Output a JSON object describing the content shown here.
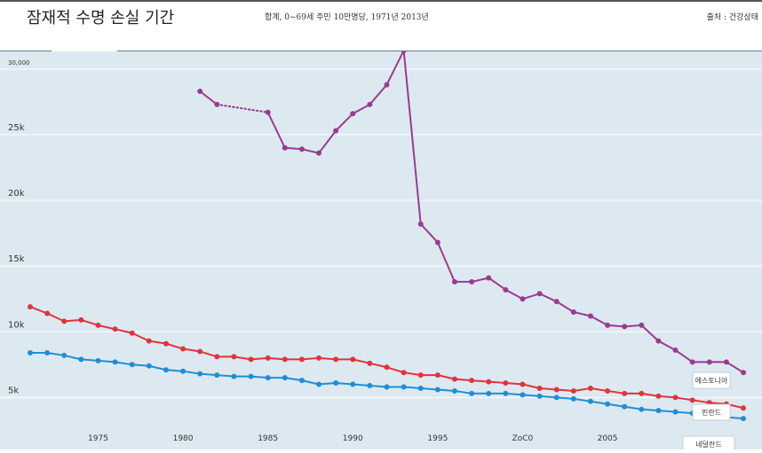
{
  "header": {
    "title": "잠재적 수명 손실 기간",
    "subtitle": "합계, 0~69세 주민 10만명당, 1971년 2013년",
    "source": "출처 : 건강상태"
  },
  "colors": {
    "background": "#dde9f1",
    "grid": "#ffffff",
    "estonia": "#9b3a8f",
    "finland": "#e0343c",
    "netherlands": "#1f8ed6"
  },
  "chart_data": {
    "type": "line",
    "title": "잠재적 수명 손실 기간",
    "xlabel": "",
    "ylabel": "",
    "xlim": [
      1971,
      2013
    ],
    "ylim": [
      3000,
      31000
    ],
    "x_ticks": [
      {
        "value": 1975,
        "label": "1975"
      },
      {
        "value": 1980,
        "label": "1980"
      },
      {
        "value": 1985,
        "label": "1985"
      },
      {
        "value": 1990,
        "label": "1990"
      },
      {
        "value": 1995,
        "label": "1995"
      },
      {
        "value": 2000,
        "label": "ZoC0"
      },
      {
        "value": 2005,
        "label": "2005"
      }
    ],
    "y_ticks": [
      {
        "value": 5000,
        "label": "5k"
      },
      {
        "value": 10000,
        "label": "10k"
      },
      {
        "value": 15000,
        "label": "15k"
      },
      {
        "value": 20000,
        "label": "20k"
      },
      {
        "value": 25000,
        "label": "25k"
      },
      {
        "value": 30000,
        "label": "30,000"
      }
    ],
    "grid": true,
    "series": [
      {
        "name": "에스토니아",
        "color": "#9b3a8f",
        "x": [
          1981,
          1982,
          1985,
          1986,
          1987,
          1988,
          1989,
          1990,
          1991,
          1992,
          1993,
          1994,
          1995,
          1996,
          1997,
          1998,
          1999,
          2000,
          2001,
          2002,
          2003,
          2004,
          2005,
          2006,
          2007,
          2008,
          2009,
          2010,
          2011,
          2012,
          2013
        ],
        "values": [
          28300,
          27300,
          26700,
          24000,
          23900,
          23600,
          25300,
          26600,
          27300,
          28800,
          31400,
          18200,
          16800,
          13800,
          13800,
          14100,
          13200,
          12500,
          12900,
          12300,
          11500,
          11200,
          10500,
          10400,
          10500,
          9300,
          8600,
          7700,
          7700,
          7700,
          6900
        ],
        "dotted_segments": [
          [
            1982,
            1985
          ]
        ]
      },
      {
        "name": "핀란드",
        "color": "#e0343c",
        "x": [
          1971,
          1972,
          1973,
          1974,
          1975,
          1976,
          1977,
          1978,
          1979,
          1980,
          1981,
          1982,
          1983,
          1984,
          1985,
          1986,
          1987,
          1988,
          1989,
          1990,
          1991,
          1992,
          1993,
          1994,
          1995,
          1996,
          1997,
          1998,
          1999,
          2000,
          2001,
          2002,
          2003,
          2004,
          2005,
          2006,
          2007,
          2008,
          2009,
          2010,
          2011,
          2012,
          2013
        ],
        "values": [
          11900,
          11400,
          10800,
          10900,
          10500,
          10200,
          9900,
          9300,
          9100,
          8700,
          8500,
          8100,
          8100,
          7900,
          8000,
          7900,
          7900,
          8000,
          7900,
          7900,
          7600,
          7300,
          6900,
          6700,
          6700,
          6400,
          6300,
          6200,
          6100,
          6000,
          5700,
          5600,
          5500,
          5700,
          5500,
          5300,
          5300,
          5100,
          5000,
          4800,
          4600,
          4500,
          4200
        ]
      },
      {
        "name": "네덜란드",
        "color": "#1f8ed6",
        "x": [
          1971,
          1972,
          1973,
          1974,
          1975,
          1976,
          1977,
          1978,
          1979,
          1980,
          1981,
          1982,
          1983,
          1984,
          1985,
          1986,
          1987,
          1988,
          1989,
          1990,
          1991,
          1992,
          1993,
          1994,
          1995,
          1996,
          1997,
          1998,
          1999,
          2000,
          2001,
          2002,
          2003,
          2004,
          2005,
          2006,
          2007,
          2008,
          2009,
          2010,
          2011,
          2012,
          2013
        ],
        "values": [
          8400,
          8400,
          8200,
          7900,
          7800,
          7700,
          7500,
          7400,
          7100,
          7000,
          6800,
          6700,
          6600,
          6600,
          6500,
          6500,
          6300,
          6000,
          6100,
          6000,
          5900,
          5800,
          5800,
          5700,
          5600,
          5500,
          5300,
          5300,
          5300,
          5200,
          5100,
          5000,
          4900,
          4700,
          4500,
          4300,
          4100,
          4000,
          3900,
          3800,
          3600,
          3500,
          3400
        ]
      }
    ],
    "end_labels": [
      "에스토니아",
      "핀란드",
      "네덜란드"
    ]
  }
}
